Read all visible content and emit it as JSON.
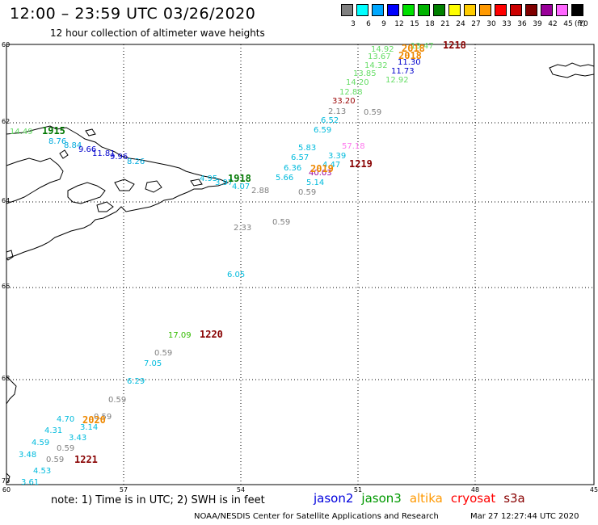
{
  "header": {
    "title": "12:00 – 23:59 UTC 03/26/2020",
    "subtitle": "12 hour collection of altimeter wave heights"
  },
  "color_scale": {
    "unit": "(ft)",
    "bins": [
      {
        "label": "3",
        "color": "#808080"
      },
      {
        "label": "6",
        "color": "#00ffff"
      },
      {
        "label": "9",
        "color": "#00a8ff"
      },
      {
        "label": "12",
        "color": "#0000ff"
      },
      {
        "label": "15",
        "color": "#00e000"
      },
      {
        "label": "18",
        "color": "#00b400"
      },
      {
        "label": "21",
        "color": "#008000"
      },
      {
        "label": "24",
        "color": "#ffff00"
      },
      {
        "label": "27",
        "color": "#ffcc00"
      },
      {
        "label": "30",
        "color": "#ff9900"
      },
      {
        "label": "33",
        "color": "#ff0000"
      },
      {
        "label": "36",
        "color": "#cc0000"
      },
      {
        "label": "39",
        "color": "#800000"
      },
      {
        "label": "42",
        "color": "#990099"
      },
      {
        "label": "45",
        "color": "#ff66ff"
      },
      {
        "label": "70",
        "color": "#000000"
      }
    ]
  },
  "map": {
    "lat_labels": [
      "60",
      "62",
      "64",
      "66",
      "68",
      "70"
    ],
    "lon_labels": [
      "60",
      "57",
      "54",
      "51",
      "48",
      "45"
    ],
    "observations": [
      {
        "v": "13.47",
        "c": "#66dd66"
      },
      {
        "v": "14.92",
        "c": "#66dd66"
      },
      {
        "v": "13.67",
        "c": "#66dd66"
      },
      {
        "v": "14.32",
        "c": "#66dd66"
      },
      {
        "v": "11.30",
        "c": "#0000cc"
      },
      {
        "v": "13.85",
        "c": "#66dd66"
      },
      {
        "v": "11.73",
        "c": "#0000cc"
      },
      {
        "v": "12.92",
        "c": "#66dd66"
      },
      {
        "v": "14.20",
        "c": "#66dd66"
      },
      {
        "v": "12.88",
        "c": "#66dd66"
      },
      {
        "v": "33.20",
        "c": "#990000"
      },
      {
        "v": "2.13",
        "c": "#808080"
      },
      {
        "v": "0.59",
        "c": "#808080"
      },
      {
        "v": "6.52",
        "c": "#00bbdd"
      },
      {
        "v": "6.59",
        "c": "#00bbdd"
      },
      {
        "v": "14.49",
        "c": "#66dd66"
      },
      {
        "v": "8.76",
        "c": "#00aadd"
      },
      {
        "v": "8.84",
        "c": "#00aadd"
      },
      {
        "v": "9.66",
        "c": "#0000cc"
      },
      {
        "v": "11.81",
        "c": "#0000cc"
      },
      {
        "v": "9.96",
        "c": "#0000cc"
      },
      {
        "v": "8.26",
        "c": "#00aadd"
      },
      {
        "v": "5.83",
        "c": "#00bbdd"
      },
      {
        "v": "57.18",
        "c": "#ff77ee"
      },
      {
        "v": "3.39",
        "c": "#00bbdd"
      },
      {
        "v": "6.57",
        "c": "#00bbdd"
      },
      {
        "v": "4.47",
        "c": "#00bbdd"
      },
      {
        "v": "6.36",
        "c": "#00bbdd"
      },
      {
        "v": "40.03",
        "c": "#990099"
      },
      {
        "v": "5.66",
        "c": "#00bbdd"
      },
      {
        "v": "5.14",
        "c": "#00bbdd"
      },
      {
        "v": "4.95",
        "c": "#00bbdd"
      },
      {
        "v": "3.97",
        "c": "#00bbdd"
      },
      {
        "v": "4.07",
        "c": "#00bbdd"
      },
      {
        "v": "2.88",
        "c": "#808080"
      },
      {
        "v": "0.59",
        "c": "#808080"
      },
      {
        "v": "0.59",
        "c": "#808080"
      },
      {
        "v": "2.33",
        "c": "#808080"
      },
      {
        "v": "6.05",
        "c": "#00bbdd"
      },
      {
        "v": "17.09",
        "c": "#33bb00"
      },
      {
        "v": "0.59",
        "c": "#808080"
      },
      {
        "v": "7.05",
        "c": "#00bbdd"
      },
      {
        "v": "6.29",
        "c": "#00bbdd"
      },
      {
        "v": "0.59",
        "c": "#808080"
      },
      {
        "v": "4.70",
        "c": "#00bbdd"
      },
      {
        "v": "0.59",
        "c": "#808080"
      },
      {
        "v": "4.31",
        "c": "#00bbdd"
      },
      {
        "v": "3.14",
        "c": "#00bbdd"
      },
      {
        "v": "3.43",
        "c": "#00bbdd"
      },
      {
        "v": "4.59",
        "c": "#00bbdd"
      },
      {
        "v": "0.59",
        "c": "#808080"
      },
      {
        "v": "3.48",
        "c": "#00bbdd"
      },
      {
        "v": "0.59",
        "c": "#808080"
      },
      {
        "v": "4.53",
        "c": "#00bbdd"
      },
      {
        "v": "3.61",
        "c": "#00bbdd"
      }
    ],
    "passes": [
      {
        "v": "1218",
        "c": "#880000"
      },
      {
        "v": "2018",
        "c": "#ee8800"
      },
      {
        "v": "2018",
        "c": "#ee8800"
      },
      {
        "v": "1915",
        "c": "#007700"
      },
      {
        "v": "1219",
        "c": "#880000"
      },
      {
        "v": "2019",
        "c": "#ee8800"
      },
      {
        "v": "1918",
        "c": "#007700"
      },
      {
        "v": "1220",
        "c": "#880000"
      },
      {
        "v": "2020",
        "c": "#ee8800"
      },
      {
        "v": "1221",
        "c": "#880000"
      }
    ]
  },
  "footer": {
    "note": "note: 1) Time is in UTC; 2) SWH is in feet",
    "legend": [
      {
        "label": "jason2",
        "color": "#0000dd"
      },
      {
        "label": "jason3",
        "color": "#009900"
      },
      {
        "label": "altika",
        "color": "#ff9900"
      },
      {
        "label": "cryosat",
        "color": "#ff0000"
      },
      {
        "label": "s3a",
        "color": "#880000"
      }
    ],
    "credit": "NOAA/NESDIS Center for Satellite Applications and Research",
    "timestamp": "Mar 27 12:27:44 UTC 2020"
  }
}
